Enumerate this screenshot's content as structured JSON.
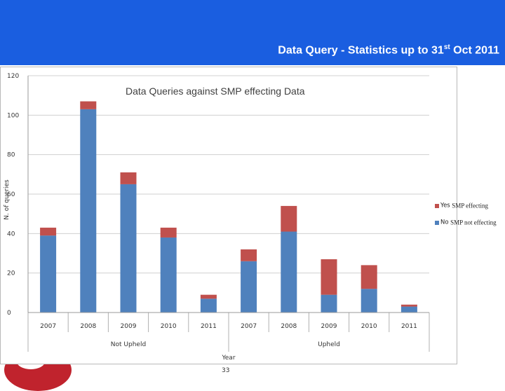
{
  "header": {
    "title": "Data Query - Statistics up to 31",
    "title_sup": "st",
    "title_tail": " Oct 2011",
    "bg_color": "#1a5ee0"
  },
  "footer": {
    "page_number": "33"
  },
  "legend": [
    {
      "code": "Yes",
      "label": "SMP effecting",
      "color": "#c0504d"
    },
    {
      "code": "No",
      "label": "SMP not effecting",
      "color": "#4f81bd"
    }
  ],
  "chart_data": {
    "type": "bar",
    "stacked": true,
    "title": "Data Queries against SMP effecting Data",
    "xlabel": "Year",
    "ylabel": "N. of queries",
    "ylim": [
      0,
      120
    ],
    "yticks": [
      0,
      20,
      40,
      60,
      80,
      100,
      120
    ],
    "grid": true,
    "legend_position": "right",
    "categories": [
      "2007",
      "2008",
      "2009",
      "2010",
      "2011",
      "2007",
      "2008",
      "2009",
      "2010",
      "2011"
    ],
    "groups": [
      {
        "label": "Not Upheld",
        "count": 5
      },
      {
        "label": "Upheld",
        "count": 5
      }
    ],
    "series": [
      {
        "name": "No",
        "color": "#4f81bd",
        "values": [
          39,
          103,
          65,
          38,
          7,
          26,
          41,
          9,
          12,
          3
        ]
      },
      {
        "name": "Yes",
        "color": "#c0504d",
        "values": [
          4,
          4,
          6,
          5,
          2,
          6,
          13,
          18,
          12,
          1
        ]
      }
    ]
  }
}
